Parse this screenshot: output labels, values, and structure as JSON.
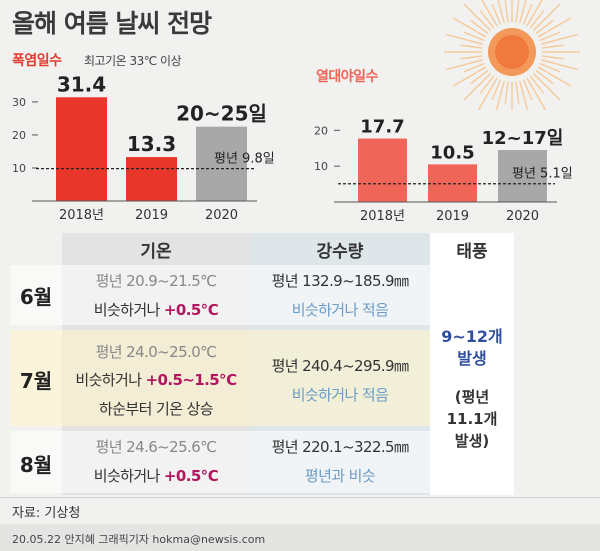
{
  "title": "올해 여름 날씨 전망",
  "heatwave": {
    "label": "폭염일수",
    "note": "최고기온 33℃ 이상"
  },
  "tropical": {
    "label": "열대야일수"
  },
  "chart_data": [
    {
      "type": "bar",
      "title": "폭염일수",
      "categories": [
        "2018년",
        "2019",
        "2020"
      ],
      "values": [
        31.4,
        13.3,
        22.5
      ],
      "value_labels": [
        "31.4",
        "13.3",
        "20~25일"
      ],
      "forecast_range": [
        20,
        25
      ],
      "normal": 9.8,
      "normal_label": "평년 9.8일",
      "yticks": [
        "10",
        "20",
        "30"
      ],
      "ylim": [
        0,
        33
      ],
      "colors": [
        "#e8362a",
        "#e8362a",
        "#a8a8a8"
      ]
    },
    {
      "type": "bar",
      "title": "열대야일수",
      "categories": [
        "2018년",
        "2019",
        "2020"
      ],
      "values": [
        17.7,
        10.5,
        14.5
      ],
      "value_labels": [
        "17.7",
        "10.5",
        "12~17일"
      ],
      "forecast_range": [
        12,
        17
      ],
      "normal": 5.1,
      "normal_label": "평년 5.1일",
      "yticks": [
        "10",
        "20"
      ],
      "ylim": [
        0,
        24
      ],
      "colors": [
        "#ef6658",
        "#ef6658",
        "#a8a8a8"
      ]
    }
  ],
  "table": {
    "headers": {
      "temp": "기온",
      "rain": "강수량",
      "typhoon": "태풍"
    },
    "rows": [
      {
        "month": "6월",
        "temp_normal": "평년 20.9~21.5℃",
        "temp_outlook_prefix": "비슷하거나 ",
        "temp_outlook_value": "+0.5℃",
        "rain_normal": "평년 132.9~185.9㎜",
        "rain_outlook": "비슷하거나 적음"
      },
      {
        "month": "7월",
        "temp_normal": "평년 24.0~25.0℃",
        "temp_outlook_prefix": "비슷하거나 ",
        "temp_outlook_value": "+0.5~1.5℃",
        "temp_extra": "하순부터 기온 상승",
        "rain_normal": "평년 240.4~295.9㎜",
        "rain_outlook": "비슷하거나 적음"
      },
      {
        "month": "8월",
        "temp_normal": "평년 24.6~25.6℃",
        "temp_outlook_prefix": "비슷하거나 ",
        "temp_outlook_value": "+0.5℃",
        "rain_normal": "평년 220.1~322.5㎜",
        "rain_outlook": "평년과 비슷"
      }
    ],
    "typhoon": {
      "count": "9~12개",
      "count_suffix": "발생",
      "normal_open": "(평년",
      "normal_value": "11.1개",
      "normal_close": "발생)"
    }
  },
  "footer": {
    "source": "자료: 기상청",
    "credit": "20.05.22 안지혜 그래픽기자 hokma@newsis.com"
  },
  "colors": {
    "heat_bar": "#e8362a",
    "night_bar": "#ef6658",
    "forecast_bar": "#a8a8a8",
    "accent_red": "#e33b2e",
    "accent_coral": "#ef6658",
    "maroon": "#b3165e",
    "blue_text": "#6a9bc9",
    "typhoon_blue": "#2f4f9e"
  },
  "icons": {
    "sun": "sun-icon"
  }
}
